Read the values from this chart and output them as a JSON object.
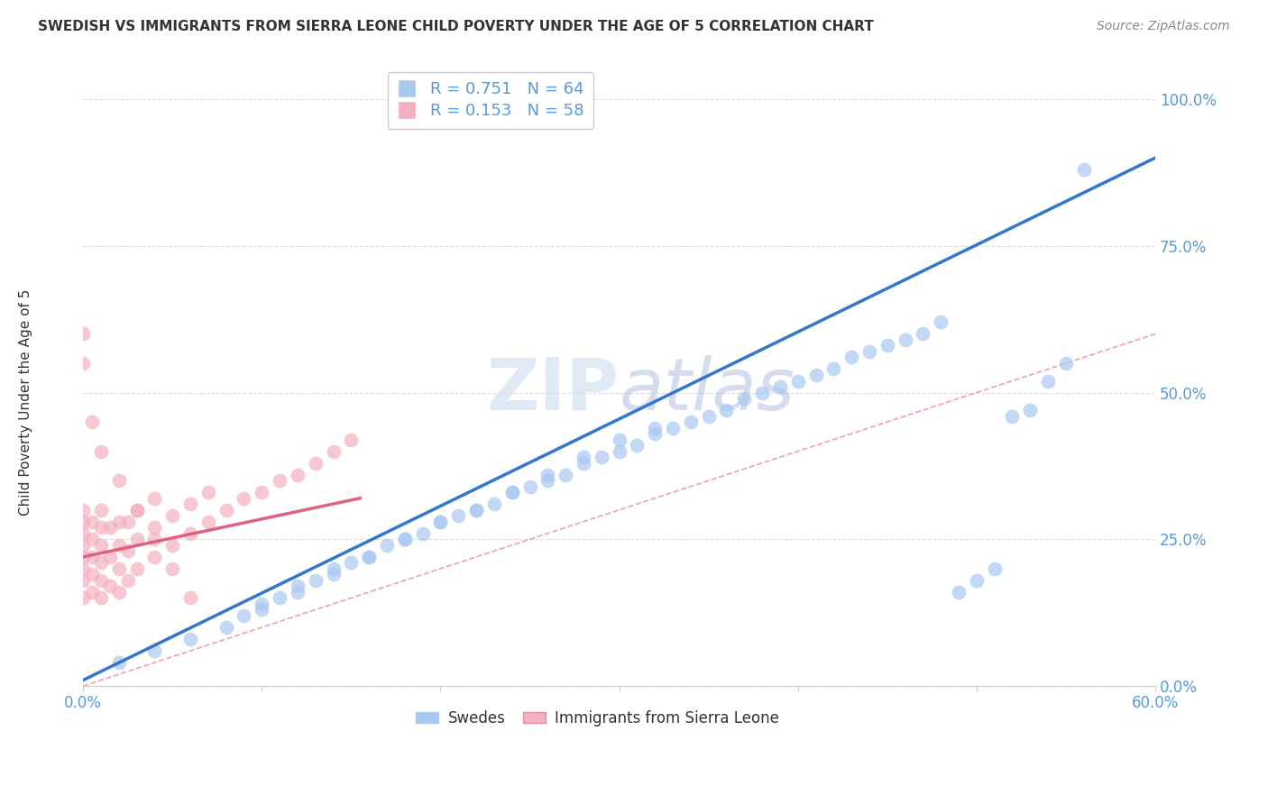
{
  "title": "SWEDISH VS IMMIGRANTS FROM SIERRA LEONE CHILD POVERTY UNDER THE AGE OF 5 CORRELATION CHART",
  "source": "Source: ZipAtlas.com",
  "ylabel": "Child Poverty Under the Age of 5",
  "ytick_labels": [
    "0.0%",
    "25.0%",
    "50.0%",
    "75.0%",
    "100.0%"
  ],
  "ytick_values": [
    0.0,
    0.25,
    0.5,
    0.75,
    1.0
  ],
  "xlim": [
    0.0,
    0.6
  ],
  "ylim": [
    0.0,
    1.05
  ],
  "legend_labels_bottom": [
    "Swedes",
    "Immigrants from Sierra Leone"
  ],
  "swedes_color": "#a8c8f0",
  "immigrants_color": "#f4b0c0",
  "trendline_swedes_color": "#3377cc",
  "trendline_immigrants_color": "#e06080",
  "diagonal_color": "#f0a0b0",
  "background_color": "#ffffff",
  "watermark": "ZIPatlas",
  "R_swedes": 0.751,
  "N_swedes": 64,
  "R_immigrants": 0.153,
  "N_immigrants": 58,
  "tick_color": "#5599dd",
  "grid_color": "#dddddd",
  "swedes_x": [
    0.02,
    0.04,
    0.06,
    0.08,
    0.09,
    0.1,
    0.11,
    0.12,
    0.13,
    0.14,
    0.15,
    0.16,
    0.17,
    0.18,
    0.19,
    0.2,
    0.21,
    0.22,
    0.23,
    0.24,
    0.25,
    0.26,
    0.27,
    0.28,
    0.29,
    0.3,
    0.31,
    0.32,
    0.33,
    0.34,
    0.35,
    0.36,
    0.37,
    0.38,
    0.39,
    0.4,
    0.41,
    0.42,
    0.43,
    0.44,
    0.45,
    0.46,
    0.47,
    0.48,
    0.49,
    0.5,
    0.51,
    0.52,
    0.53,
    0.54,
    0.55,
    0.56,
    0.1,
    0.12,
    0.14,
    0.16,
    0.18,
    0.2,
    0.22,
    0.24,
    0.26,
    0.28,
    0.3,
    0.32
  ],
  "swedes_y": [
    0.04,
    0.06,
    0.08,
    0.1,
    0.12,
    0.13,
    0.15,
    0.16,
    0.18,
    0.2,
    0.21,
    0.22,
    0.24,
    0.25,
    0.26,
    0.28,
    0.29,
    0.3,
    0.31,
    0.33,
    0.34,
    0.35,
    0.36,
    0.38,
    0.39,
    0.4,
    0.41,
    0.43,
    0.44,
    0.45,
    0.46,
    0.47,
    0.49,
    0.5,
    0.51,
    0.52,
    0.53,
    0.54,
    0.56,
    0.57,
    0.58,
    0.59,
    0.6,
    0.62,
    0.16,
    0.18,
    0.2,
    0.46,
    0.47,
    0.52,
    0.55,
    0.88,
    0.14,
    0.17,
    0.19,
    0.22,
    0.25,
    0.28,
    0.3,
    0.33,
    0.36,
    0.39,
    0.42,
    0.44
  ],
  "immigrants_x": [
    0.0,
    0.0,
    0.0,
    0.0,
    0.0,
    0.0,
    0.0,
    0.0,
    0.005,
    0.005,
    0.005,
    0.005,
    0.005,
    0.01,
    0.01,
    0.01,
    0.01,
    0.01,
    0.01,
    0.015,
    0.015,
    0.015,
    0.02,
    0.02,
    0.02,
    0.02,
    0.025,
    0.025,
    0.025,
    0.03,
    0.03,
    0.03,
    0.04,
    0.04,
    0.04,
    0.05,
    0.05,
    0.06,
    0.06,
    0.07,
    0.07,
    0.08,
    0.09,
    0.1,
    0.11,
    0.12,
    0.13,
    0.14,
    0.15,
    0.0,
    0.0,
    0.005,
    0.01,
    0.02,
    0.03,
    0.04,
    0.05,
    0.06
  ],
  "immigrants_y": [
    0.15,
    0.18,
    0.2,
    0.22,
    0.24,
    0.26,
    0.28,
    0.3,
    0.16,
    0.19,
    0.22,
    0.25,
    0.28,
    0.15,
    0.18,
    0.21,
    0.24,
    0.27,
    0.3,
    0.17,
    0.22,
    0.27,
    0.16,
    0.2,
    0.24,
    0.28,
    0.18,
    0.23,
    0.28,
    0.2,
    0.25,
    0.3,
    0.22,
    0.27,
    0.32,
    0.24,
    0.29,
    0.26,
    0.31,
    0.28,
    0.33,
    0.3,
    0.32,
    0.33,
    0.35,
    0.36,
    0.38,
    0.4,
    0.42,
    0.55,
    0.6,
    0.45,
    0.4,
    0.35,
    0.3,
    0.25,
    0.2,
    0.15
  ]
}
